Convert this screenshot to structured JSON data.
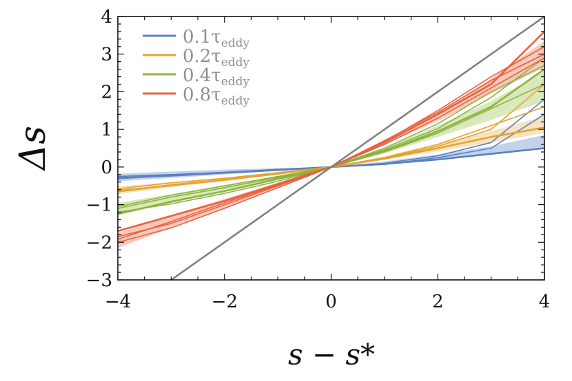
{
  "chart_data": {
    "type": "line",
    "xlabel": "s − s*",
    "ylabel": "Δs",
    "xlim": [
      -4,
      4
    ],
    "ylim": [
      -3,
      4
    ],
    "xticks": [
      -4,
      -2,
      0,
      2,
      4
    ],
    "xtick_labels": [
      "−4",
      "−2",
      "0",
      "2",
      "4"
    ],
    "yticks": [
      -3,
      -2,
      -1,
      0,
      1,
      2,
      3,
      4
    ],
    "ytick_labels": [
      "−3",
      "−2",
      "−1",
      "0",
      "1",
      "2",
      "3",
      "4"
    ],
    "legend_position": "top-left",
    "reference_line": {
      "slope": 1,
      "color": "#808080"
    },
    "series": [
      {
        "name": "0.1τeddy",
        "legend_main": "0.1τ",
        "legend_sub": "eddy",
        "color": "#5a7fc4",
        "band_color": "#aec3e4",
        "x": [
          -4,
          -3,
          -2,
          -1,
          0,
          1,
          2,
          3,
          4
        ],
        "band_lower": [
          -0.38,
          -0.29,
          -0.2,
          -0.1,
          0,
          0.1,
          0.21,
          0.33,
          0.48
        ],
        "band_upper": [
          -0.18,
          -0.12,
          -0.07,
          -0.03,
          0,
          0.15,
          0.33,
          0.55,
          0.85
        ],
        "lines": [
          [
            -0.3,
            -0.22,
            -0.15,
            -0.08,
            0.0,
            0.08,
            0.2,
            0.35,
            0.5
          ],
          [
            -0.25,
            -0.2,
            -0.14,
            -0.06,
            0.0,
            0.1,
            0.3,
            0.65,
            1.8
          ],
          [
            -0.28,
            -0.24,
            -0.16,
            -0.09,
            0.0,
            0.07,
            0.25,
            0.5,
            1.4
          ]
        ]
      },
      {
        "name": "0.2τeddy",
        "legend_main": "0.2τ",
        "legend_sub": "eddy",
        "color": "#e8a22c",
        "band_color": "#f3d9aa",
        "x": [
          -4,
          -3,
          -2,
          -1,
          0,
          1,
          2,
          3,
          4
        ],
        "band_lower": [
          -0.72,
          -0.54,
          -0.38,
          -0.2,
          0,
          0.2,
          0.42,
          0.65,
          0.9
        ],
        "band_upper": [
          -0.52,
          -0.4,
          -0.28,
          -0.14,
          0,
          0.28,
          0.62,
          0.95,
          1.35
        ],
        "lines": [
          [
            -0.65,
            -0.48,
            -0.34,
            -0.17,
            0.0,
            0.22,
            0.5,
            0.8,
            1.05
          ],
          [
            -0.58,
            -0.42,
            -0.3,
            -0.15,
            0.0,
            0.25,
            0.6,
            1.1,
            1.6
          ],
          [
            -0.62,
            -0.5,
            -0.35,
            -0.19,
            0.0,
            0.24,
            0.55,
            1.0,
            2.2
          ]
        ]
      },
      {
        "name": "0.4τeddy",
        "legend_main": "0.4τ",
        "legend_sub": "eddy",
        "color": "#8cb43c",
        "band_color": "#cfe0a6",
        "x": [
          -4,
          -3,
          -2,
          -1,
          0,
          1,
          2,
          3,
          4
        ],
        "band_lower": [
          -1.25,
          -0.95,
          -0.66,
          -0.34,
          0,
          0.36,
          0.8,
          1.25,
          1.75
        ],
        "band_upper": [
          -0.95,
          -0.72,
          -0.48,
          -0.24,
          0,
          0.5,
          1.1,
          1.75,
          2.55
        ],
        "lines": [
          [
            -1.25,
            -0.92,
            -0.64,
            -0.32,
            0.0,
            0.42,
            0.95,
            1.6,
            2.6
          ],
          [
            -1.1,
            -0.8,
            -0.55,
            -0.28,
            0.0,
            0.46,
            1.02,
            1.85,
            2.9
          ],
          [
            -1.2,
            -0.98,
            -0.7,
            -0.38,
            0.0,
            0.4,
            0.9,
            1.55,
            2.2
          ],
          [
            -1.05,
            -0.75,
            -0.5,
            -0.25,
            0.0,
            0.5,
            1.15,
            2.0,
            2.7
          ]
        ]
      },
      {
        "name": "0.8τeddy",
        "legend_main": "0.8τ",
        "legend_sub": "eddy",
        "color": "#e9613e",
        "band_color": "#f6b5a3",
        "x": [
          -4,
          -3,
          -2,
          -1,
          0,
          1,
          2,
          3,
          4
        ],
        "band_lower": [
          -2.15,
          -1.62,
          -1.08,
          -0.54,
          0,
          0.6,
          1.22,
          1.95,
          2.65
        ],
        "band_upper": [
          -1.75,
          -1.28,
          -0.85,
          -0.42,
          0,
          0.72,
          1.45,
          2.35,
          3.35
        ],
        "lines": [
          [
            -1.7,
            -1.3,
            -0.9,
            -0.45,
            0.0,
            0.65,
            1.4,
            2.2,
            3.6
          ],
          [
            -1.85,
            -1.5,
            -1.0,
            -0.5,
            0.0,
            0.68,
            1.5,
            2.4,
            3.2
          ],
          [
            -2.0,
            -1.62,
            -1.1,
            -0.55,
            0.0,
            0.6,
            1.3,
            2.1,
            2.9
          ],
          [
            -1.92,
            -1.45,
            -0.95,
            -0.48,
            0.0,
            0.7,
            1.45,
            2.3,
            3.0
          ]
        ]
      }
    ]
  }
}
